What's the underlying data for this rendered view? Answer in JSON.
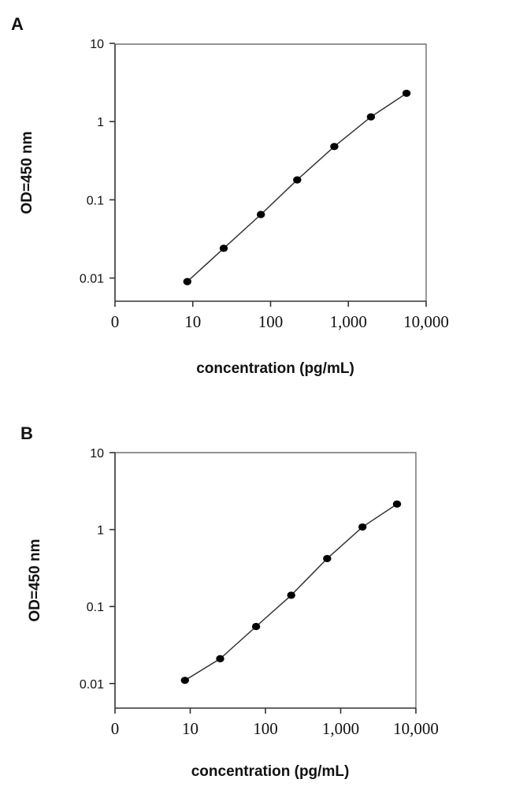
{
  "chart_data": [
    {
      "panel": "A",
      "type": "line",
      "xlabel": "concentration (pg/mL)",
      "ylabel": "OD=450 nm",
      "xscale": "log",
      "yscale": "log",
      "xlim": [
        1,
        10000
      ],
      "ylim": [
        0.005,
        10
      ],
      "xticks": [
        "0",
        "10",
        "100",
        "1,000",
        "10,000"
      ],
      "yticks": [
        "0.01",
        "0.1",
        "1",
        "10"
      ],
      "grid": false,
      "x": [
        8.5,
        25,
        75,
        220,
        660,
        1950,
        5600
      ],
      "y": [
        0.009,
        0.024,
        0.065,
        0.18,
        0.48,
        1.15,
        2.3
      ]
    },
    {
      "panel": "B",
      "type": "line",
      "xlabel": "concentration (pg/mL)",
      "ylabel": "OD=450 nm",
      "xscale": "log",
      "yscale": "log",
      "xlim": [
        1,
        10000
      ],
      "ylim": [
        0.005,
        10
      ],
      "xticks": [
        "0",
        "10",
        "100",
        "1,000",
        "10,000"
      ],
      "yticks": [
        "0.01",
        "0.1",
        "1",
        "10"
      ],
      "grid": false,
      "x": [
        8.5,
        25,
        75,
        220,
        660,
        1950,
        5600
      ],
      "y": [
        0.011,
        0.021,
        0.055,
        0.14,
        0.42,
        1.08,
        2.15
      ]
    }
  ]
}
